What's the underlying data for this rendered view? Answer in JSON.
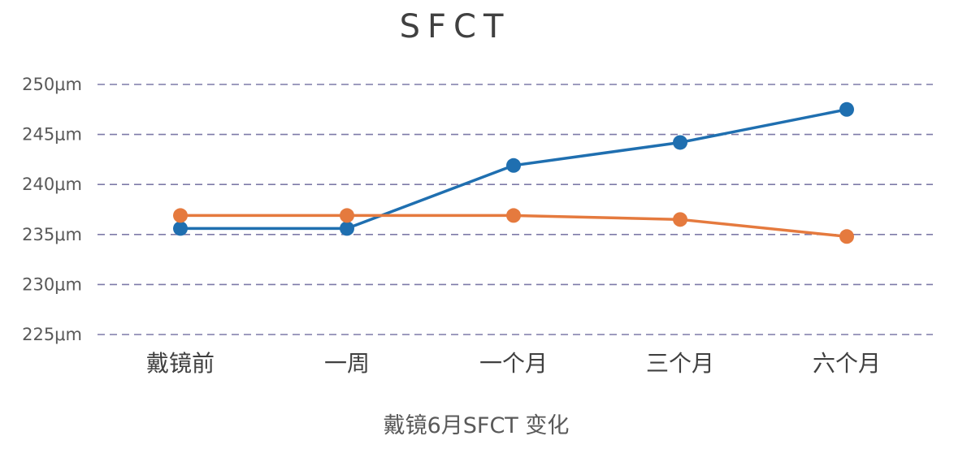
{
  "chart_data": {
    "type": "line",
    "title": "SFCT",
    "xlabel": "戴镜6月SFCT 变化",
    "ylabel": "",
    "categories": [
      "戴镜前",
      "一周",
      "一个月",
      "三个月",
      "六个月"
    ],
    "series": [
      {
        "values": [
          235.6,
          235.6,
          241.9,
          244.2,
          247.5
        ],
        "color": "#1f6fb0"
      },
      {
        "values": [
          236.9,
          236.9,
          236.9,
          236.5,
          234.8
        ],
        "color": "#e57a3e"
      }
    ],
    "ylim": [
      225,
      250
    ],
    "yticks": [
      225,
      230,
      235,
      240,
      245,
      250
    ],
    "y_unit": "μm",
    "grid": true,
    "grid_color": "#7d7aa8"
  }
}
